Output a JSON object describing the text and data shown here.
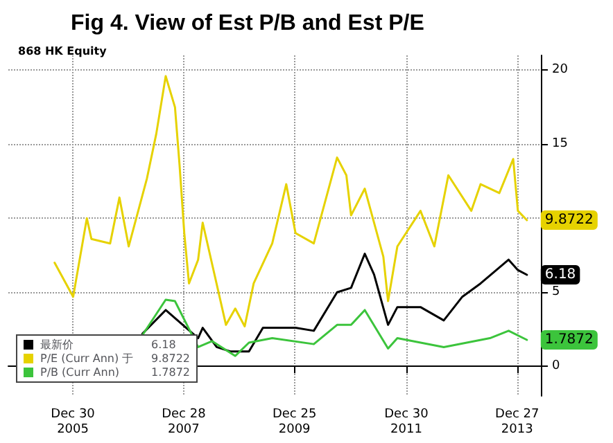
{
  "chart_data": {
    "type": "line",
    "title": "Fig 4. View of Est P/B and Est P/E",
    "subtitle": "868 HK Equity",
    "xlim": [
      "2004-11",
      "2014-06"
    ],
    "xticks": [
      {
        "value": "2005-12-30",
        "label": "Dec 30\n2005"
      },
      {
        "value": "2007-12-28",
        "label": "Dec 28\n2007"
      },
      {
        "value": "2009-12-25",
        "label": "Dec 25\n2009"
      },
      {
        "value": "2011-12-30",
        "label": "Dec 30\n2011"
      },
      {
        "value": "2013-12-27",
        "label": "Dec 27\n2013"
      }
    ],
    "ylim": [
      -2,
      21
    ],
    "yticks": [
      0,
      5,
      {
        "value": 10,
        "label": null
      },
      15,
      20
    ],
    "grid": true,
    "legend": "bottom left",
    "marker": "none",
    "line_style": "solid",
    "series": [
      {
        "name": "最新价",
        "color": "#000000",
        "x": [
          "2007-04",
          "2007-09",
          "2008-04",
          "2008-05",
          "2008-08",
          "2008-11",
          "2009-03",
          "2009-06",
          "2010-01",
          "2010-05",
          "2010-10",
          "2011-01",
          "2011-04",
          "2011-06",
          "2011-09",
          "2011-11",
          "2012-04",
          "2012-09",
          "2013-01",
          "2013-05",
          "2013-11",
          "2014-01",
          "2014-03"
        ],
        "values": [
          2.2,
          3.8,
          1.9,
          2.6,
          1.3,
          1.0,
          1.0,
          2.6,
          2.6,
          2.4,
          5.0,
          5.3,
          7.6,
          6.2,
          2.8,
          4.0,
          4.0,
          3.1,
          4.7,
          5.6,
          7.2,
          6.5,
          6.18
        ],
        "value_labels": [
          null,
          null,
          null,
          null,
          null,
          null,
          null,
          null,
          null,
          null,
          null,
          null,
          null,
          null,
          null,
          null,
          null,
          null,
          null,
          null,
          null,
          null,
          "6.18"
        ]
      },
      {
        "name": "P/E (Curr Ann) 于",
        "color": "#e6d200",
        "x": [
          "2005-09",
          "2006-01",
          "2006-04",
          "2006-05",
          "2006-09",
          "2006-11",
          "2007-01",
          "2007-05",
          "2007-07",
          "2007-09",
          "2007-11",
          "2007-12",
          "2008-01",
          "2008-02",
          "2008-04",
          "2008-05",
          "2008-10",
          "2008-12",
          "2009-02",
          "2009-04",
          "2009-08",
          "2009-11",
          "2010-01",
          "2010-05",
          "2010-10",
          "2010-12",
          "2011-01",
          "2011-04",
          "2011-08",
          "2011-09",
          "2011-11",
          "2012-04",
          "2012-07",
          "2012-10",
          "2013-03",
          "2013-05",
          "2013-09",
          "2013-12",
          "2014-01",
          "2014-03"
        ],
        "values": [
          7.0,
          4.7,
          10.0,
          8.6,
          8.3,
          11.4,
          8.1,
          12.7,
          15.7,
          19.6,
          17.5,
          13.6,
          9.0,
          5.6,
          7.2,
          9.7,
          2.8,
          3.9,
          2.7,
          5.6,
          8.3,
          12.3,
          9.0,
          8.3,
          14.1,
          12.9,
          10.2,
          12.0,
          7.4,
          4.4,
          8.1,
          10.5,
          8.1,
          12.9,
          10.5,
          12.3,
          11.7,
          14.0,
          10.5,
          9.8722
        ],
        "value_labels": [
          null,
          null,
          null,
          null,
          null,
          null,
          null,
          null,
          null,
          null,
          null,
          null,
          null,
          null,
          null,
          null,
          null,
          null,
          null,
          null,
          null,
          null,
          null,
          null,
          null,
          null,
          null,
          null,
          null,
          null,
          null,
          null,
          null,
          null,
          null,
          null,
          null,
          null,
          null,
          "9.8722"
        ]
      },
      {
        "name": "P/B (Curr Ann)",
        "color": "#3cc43c",
        "x": [
          "2007-04",
          "2007-09",
          "2007-11",
          "2008-04",
          "2008-07",
          "2008-12",
          "2009-03",
          "2009-08",
          "2010-05",
          "2010-10",
          "2011-01",
          "2011-04",
          "2011-09",
          "2011-11",
          "2012-09",
          "2013-07",
          "2013-11",
          "2014-03"
        ],
        "values": [
          2.1,
          4.5,
          4.4,
          1.3,
          1.7,
          0.7,
          1.6,
          1.9,
          1.5,
          2.8,
          2.8,
          3.8,
          1.2,
          1.9,
          1.3,
          1.9,
          2.4,
          1.7872
        ],
        "value_labels": [
          null,
          null,
          null,
          null,
          null,
          null,
          null,
          null,
          null,
          null,
          null,
          null,
          null,
          null,
          null,
          null,
          null,
          "1.7872"
        ]
      }
    ]
  }
}
